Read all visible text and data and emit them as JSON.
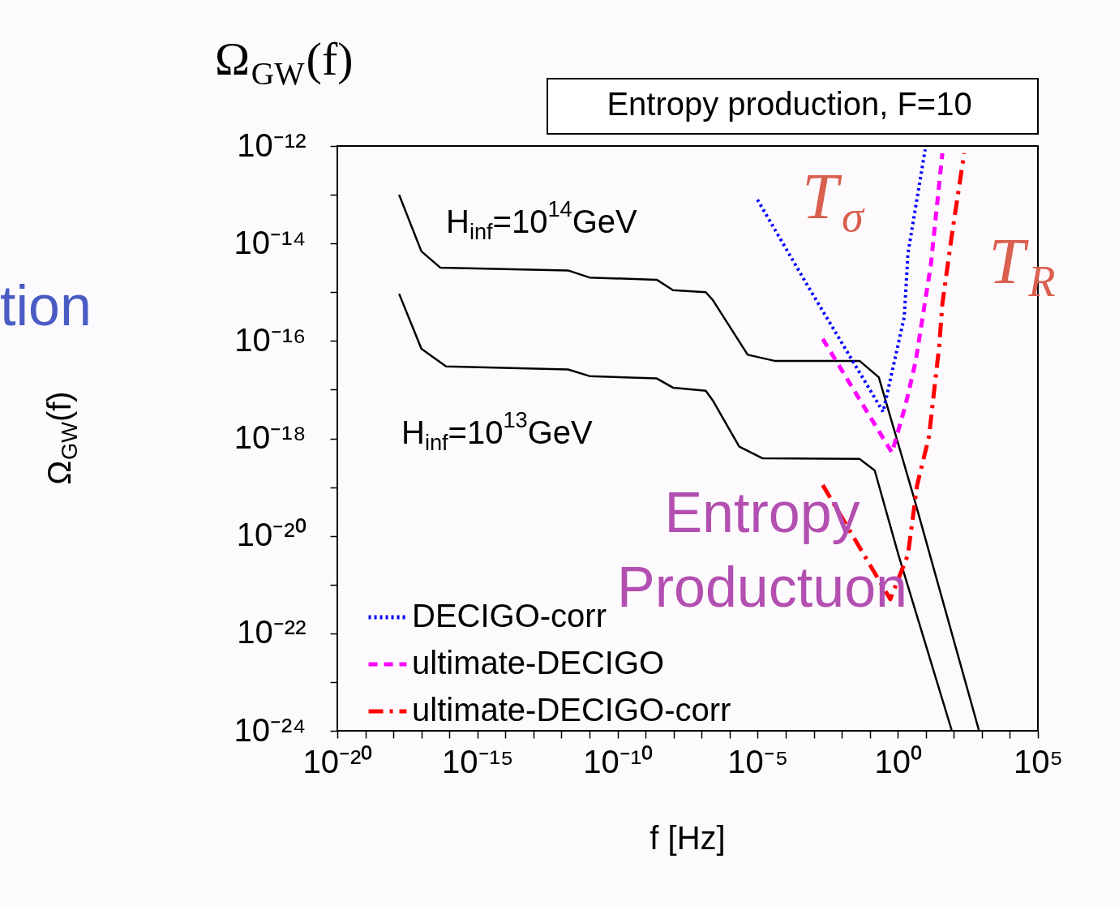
{
  "chart_data": {
    "type": "line",
    "title": "Ω$_{GW}$(f)",
    "xlabel": "f [Hz]",
    "ylabel": "Ω$_{GW}$(f)",
    "log": "xy",
    "grid": false,
    "legend": "bottom left",
    "xlim": [
      1e-20,
      100000.0
    ],
    "ylim": [
      1e-24,
      1e-12
    ],
    "xticks": [
      {
        "value": 1e-20,
        "label": "10⁻²⁰"
      },
      {
        "value": 1e-19,
        "label": null
      },
      {
        "value": 1e-18,
        "label": null
      },
      {
        "value": 1e-17,
        "label": null
      },
      {
        "value": 1e-16,
        "label": null
      },
      {
        "value": 1e-15,
        "label": "10⁻¹⁵"
      },
      {
        "value": 1e-14,
        "label": null
      },
      {
        "value": 1e-13,
        "label": null
      },
      {
        "value": 1e-12,
        "label": null
      },
      {
        "value": 1e-11,
        "label": null
      },
      {
        "value": 1e-10,
        "label": "10⁻¹⁰"
      },
      {
        "value": 1e-09,
        "label": null
      },
      {
        "value": 1e-08,
        "label": null
      },
      {
        "value": 1e-07,
        "label": null
      },
      {
        "value": 1e-06,
        "label": null
      },
      {
        "value": 1e-05,
        "label": "10⁻⁵"
      },
      {
        "value": 0.0001,
        "label": null
      },
      {
        "value": 0.001,
        "label": null
      },
      {
        "value": 0.01,
        "label": null
      },
      {
        "value": 0.1,
        "label": null
      },
      {
        "value": 1,
        "label": "10⁰"
      },
      {
        "value": 10,
        "label": null
      },
      {
        "value": 100,
        "label": null
      },
      {
        "value": 1000,
        "label": null
      },
      {
        "value": 10000,
        "label": null
      },
      {
        "value": 100000,
        "label": "10⁵"
      }
    ],
    "yticks": [
      {
        "value": 1e-24,
        "label": "10⁻²⁴"
      },
      {
        "value": 1e-23,
        "label": null
      },
      {
        "value": 1e-22,
        "label": "10⁻²²"
      },
      {
        "value": 1e-21,
        "label": null
      },
      {
        "value": 1e-20,
        "label": "10⁻²⁰"
      },
      {
        "value": 1e-19,
        "label": null
      },
      {
        "value": 1e-18,
        "label": "10⁻¹⁸"
      },
      {
        "value": 1e-17,
        "label": null
      },
      {
        "value": 1e-16,
        "label": "10⁻¹⁶"
      },
      {
        "value": 1e-15,
        "label": null
      },
      {
        "value": 1e-14,
        "label": "10⁻¹⁴"
      },
      {
        "value": 1e-13,
        "label": null
      },
      {
        "value": 1e-12,
        "label": "10⁻¹²"
      }
    ],
    "series": [
      {
        "color": "#000000",
        "line_style": "solid",
        "x": [
          1.6e-18,
          1e-17,
          4.7e-17,
          1.7e-12,
          1e-11,
          2.5e-09,
          9.5e-09,
          1.4e-07,
          2.5e-07,
          4.4e-06,
          4e-05,
          0.043,
          0.21,
          3.7,
          794
        ],
        "values": [
          1e-13,
          6.9e-15,
          3.2e-15,
          2.8e-15,
          2e-15,
          1.8e-15,
          1.1e-15,
          1e-15,
          6.9e-16,
          5.2e-17,
          3.9e-17,
          3.9e-17,
          1.8e-17,
          6.3e-20,
          1e-24
        ]
      },
      {
        "color": "#000000",
        "line_style": "solid",
        "x": [
          1.6e-18,
          1e-17,
          7.6e-17,
          1.7e-12,
          1e-11,
          2.5e-09,
          9.5e-09,
          1.4e-07,
          2.5e-07,
          2.2e-06,
          1.5e-05,
          0.043,
          0.15,
          1.05,
          85
        ],
        "values": [
          9.3e-16,
          6.9e-17,
          3e-17,
          2.6e-17,
          1.9e-17,
          1.7e-17,
          1.1e-17,
          9.5e-18,
          6e-18,
          6.8e-19,
          3.9e-19,
          3.8e-19,
          2.2e-19,
          4.1e-21,
          1e-24
        ]
      },
      {
        "name": "DECIGO-corr",
        "color": "#0000ff",
        "line_style": "dotted",
        "x": [
          9.8e-06,
          0.00069,
          0.3,
          1.7,
          2.3,
          9.5
        ],
        "values": [
          7.9e-14,
          1.2e-15,
          3.5e-18,
          3.1e-16,
          6.2e-15,
          8.5e-13
        ]
      },
      {
        "name": "ultimate-DECIGO",
        "color": "#ff00ff",
        "line_style": "dashed",
        "x": [
          0.0021,
          0.62,
          1.9,
          4.3,
          15,
          39
        ],
        "values": [
          1.1e-16,
          5.1e-19,
          4.9e-18,
          3.7e-17,
          3.5e-15,
          7.1e-13
        ]
      },
      {
        "name": "ultimate-DECIGO-corr",
        "color": "#ff0000",
        "line_style": "dashdot",
        "x": [
          0.0021,
          0.54,
          2.3,
          4.9,
          13,
          30,
          39,
          85,
          234
        ],
        "values": [
          1.1e-19,
          5e-22,
          4.1e-21,
          1.1e-19,
          1.1e-18,
          7.8e-17,
          5.8e-16,
          1.5e-14,
          7.1e-13
        ]
      }
    ],
    "annotations": [
      "Entropy production, F=10",
      "H$_{inf}$=10$^{14}$GeV",
      "H$_{inf}$=10$^{13}$GeV",
      "T$_{σ}$",
      "T$_{R}$",
      "Entropy Productuon",
      "tion"
    ]
  }
}
